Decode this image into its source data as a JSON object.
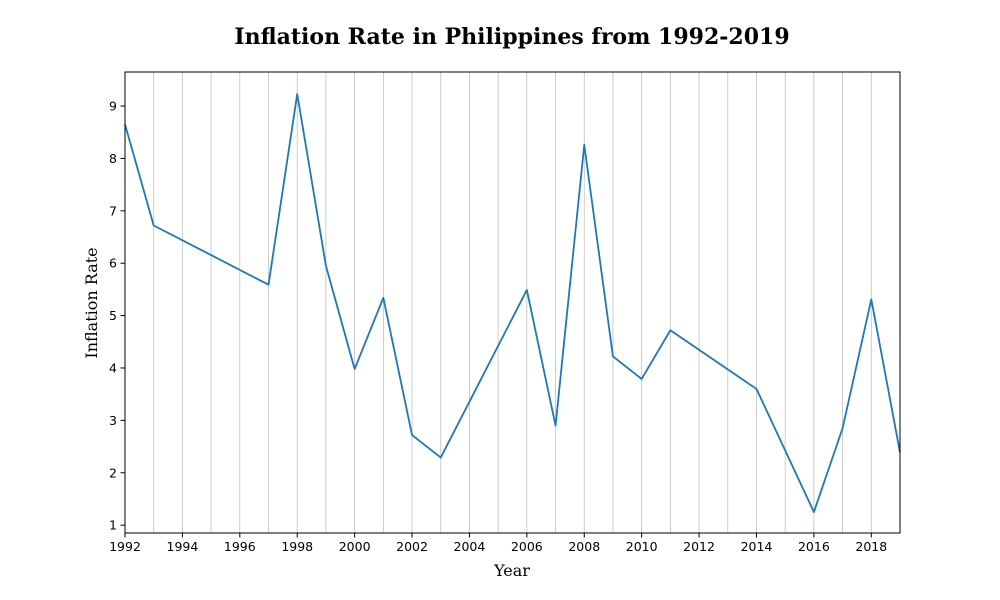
{
  "chart_data": {
    "type": "line",
    "title": "Inflation Rate in Philippines from 1992-2019",
    "xlabel": "Year",
    "ylabel": "Inflation Rate",
    "xlim": [
      1992,
      2019
    ],
    "ylim": [
      0.85,
      9.65
    ],
    "xticks": [
      1992,
      1994,
      1996,
      1998,
      2000,
      2002,
      2004,
      2006,
      2008,
      2010,
      2012,
      2014,
      2016,
      2018
    ],
    "yticks": [
      1,
      2,
      3,
      4,
      5,
      6,
      7,
      8,
      9
    ],
    "grid": "vertical-yearly",
    "legend": "none",
    "color": "#1f77b4",
    "series": [
      {
        "x": [
          1992,
          1993,
          1997,
          1998,
          1999,
          2000,
          2001,
          2002,
          2003,
          2006,
          2007,
          2008,
          2009,
          2010,
          2011,
          2014,
          2016,
          2017,
          2018,
          2019
        ],
        "values": [
          8.65,
          6.72,
          5.59,
          9.23,
          5.95,
          3.98,
          5.34,
          2.72,
          2.29,
          5.49,
          2.9,
          8.26,
          4.22,
          3.79,
          4.72,
          3.6,
          1.25,
          2.85,
          5.31,
          2.39
        ]
      }
    ]
  }
}
